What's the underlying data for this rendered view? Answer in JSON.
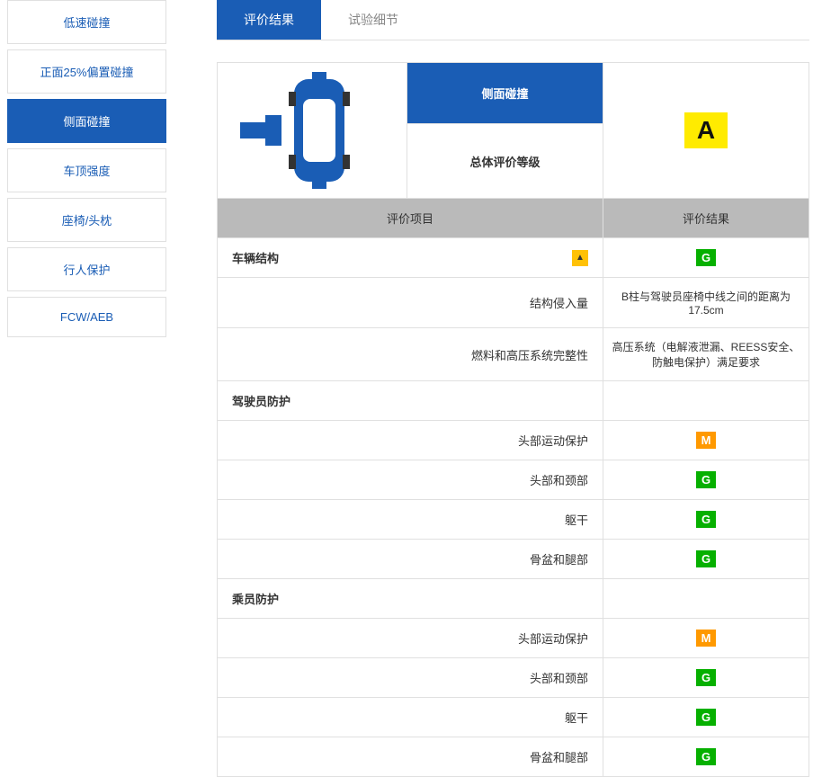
{
  "colors": {
    "brand": "#1a5db5",
    "grade_bg": "#ffeb00",
    "toggle_bg": "#ffc107",
    "th_bg": "#bababa",
    "rating_G": "#06b000",
    "rating_M": "#ff9900"
  },
  "sidebar": {
    "items": [
      {
        "label": "低速碰撞",
        "active": false
      },
      {
        "label": "正面25%偏置碰撞",
        "active": false
      },
      {
        "label": "侧面碰撞",
        "active": true
      },
      {
        "label": "车顶强度",
        "active": false
      },
      {
        "label": "座椅/头枕",
        "active": false
      },
      {
        "label": "行人保护",
        "active": false
      },
      {
        "label": "FCW/AEB",
        "active": false
      }
    ]
  },
  "tabs": [
    {
      "label": "评价结果",
      "active": true
    },
    {
      "label": "试验细节",
      "active": false
    }
  ],
  "header": {
    "test_name": "侧面碰撞",
    "grade_label": "总体评价等级",
    "overall_grade": "A"
  },
  "table_header": {
    "left": "评价项目",
    "right": "评价结果"
  },
  "rows": [
    {
      "type": "section",
      "label": "车辆结构",
      "toggle": true,
      "result": {
        "kind": "rating",
        "value": "G"
      }
    },
    {
      "type": "sub",
      "label": "结构侵入量",
      "result": {
        "kind": "text",
        "value": "B柱与驾驶员座椅中线之间的距离为17.5cm"
      }
    },
    {
      "type": "sub",
      "label": "燃料和高压系统完整性",
      "result": {
        "kind": "text",
        "value": "高压系统（电解液泄漏、REESS安全、防触电保护）满足要求"
      }
    },
    {
      "type": "section",
      "label": "驾驶员防护",
      "toggle": false,
      "result": null
    },
    {
      "type": "sub",
      "label": "头部运动保护",
      "result": {
        "kind": "rating",
        "value": "M"
      }
    },
    {
      "type": "sub",
      "label": "头部和颈部",
      "result": {
        "kind": "rating",
        "value": "G"
      }
    },
    {
      "type": "sub",
      "label": "躯干",
      "result": {
        "kind": "rating",
        "value": "G"
      }
    },
    {
      "type": "sub",
      "label": "骨盆和腿部",
      "result": {
        "kind": "rating",
        "value": "G"
      }
    },
    {
      "type": "section",
      "label": "乘员防护",
      "toggle": false,
      "result": null
    },
    {
      "type": "sub",
      "label": "头部运动保护",
      "result": {
        "kind": "rating",
        "value": "M"
      }
    },
    {
      "type": "sub",
      "label": "头部和颈部",
      "result": {
        "kind": "rating",
        "value": "G"
      }
    },
    {
      "type": "sub",
      "label": "躯干",
      "result": {
        "kind": "rating",
        "value": "G"
      }
    },
    {
      "type": "sub",
      "label": "骨盆和腿部",
      "result": {
        "kind": "rating",
        "value": "G"
      }
    }
  ]
}
